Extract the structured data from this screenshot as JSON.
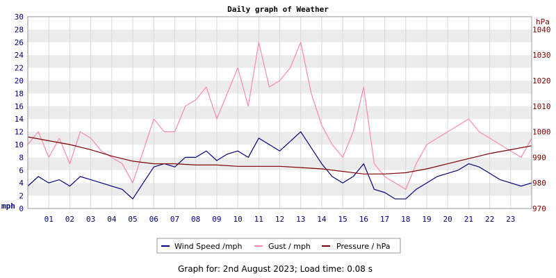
{
  "chart_data": {
    "type": "line",
    "title": "Daily graph of Weather",
    "left_axis": {
      "label": "mph",
      "ylim": [
        0,
        30
      ],
      "ticks": [
        0,
        2,
        4,
        6,
        8,
        10,
        12,
        14,
        16,
        18,
        20,
        22,
        24,
        26,
        28,
        30
      ],
      "color": "#000080"
    },
    "right_axis": {
      "label": "hPa",
      "ylim": [
        970,
        1045
      ],
      "ticks": [
        970,
        980,
        990,
        1000,
        1010,
        1020,
        1030,
        1040
      ],
      "color": "#800000"
    },
    "x_ticks": [
      "01",
      "02",
      "03",
      "04",
      "05",
      "06",
      "07",
      "08",
      "09",
      "10",
      "11",
      "12",
      "13",
      "14",
      "15",
      "16",
      "17",
      "18",
      "19",
      "20",
      "21",
      "22",
      "23"
    ],
    "x_range": [
      0,
      24
    ],
    "grid": "horizontal bands",
    "legend_position": "bottom-center",
    "legend": [
      "Wind Speed /mph",
      "Gust / mph",
      "Pressure / hPa"
    ],
    "series": [
      {
        "name": "Wind Speed /mph",
        "axis": "left",
        "color": "#000080",
        "x": [
          0,
          0.5,
          1,
          1.5,
          2,
          2.5,
          3,
          3.5,
          4,
          4.5,
          5,
          5.5,
          6,
          6.5,
          7,
          7.5,
          8,
          8.5,
          9,
          9.5,
          10,
          10.5,
          11,
          11.5,
          12,
          12.5,
          13,
          13.5,
          14,
          14.5,
          15,
          15.5,
          16,
          16.5,
          17,
          17.5,
          18,
          18.5,
          19,
          19.5,
          20,
          20.5,
          21,
          21.5,
          22,
          22.5,
          23,
          23.5,
          24
        ],
        "values": [
          3.5,
          5,
          4,
          4.5,
          3.5,
          5,
          4.5,
          4,
          3.5,
          3,
          1.5,
          4,
          6.5,
          7,
          6.5,
          8,
          8,
          9,
          7.5,
          8.5,
          9,
          8,
          11,
          10,
          9,
          10.5,
          12,
          9.5,
          7,
          5,
          4,
          5,
          7,
          3,
          2.5,
          1.5,
          1.5,
          3,
          4,
          5,
          5.5,
          6,
          7,
          6.5,
          5.5,
          4.5,
          4,
          3.5,
          4
        ]
      },
      {
        "name": "Gust / mph",
        "axis": "left",
        "color": "#ff88aa",
        "x": [
          0,
          0.5,
          1,
          1.5,
          2,
          2.5,
          3,
          3.5,
          4,
          4.5,
          5,
          5.5,
          6,
          6.5,
          7,
          7.5,
          8,
          8.5,
          9,
          9.5,
          10,
          10.5,
          11,
          11.5,
          12,
          12.5,
          13,
          13.5,
          14,
          14.5,
          15,
          15.5,
          16,
          16.5,
          17,
          17.5,
          18,
          18.5,
          19,
          19.5,
          20,
          20.5,
          21,
          21.5,
          22,
          22.5,
          23,
          23.5,
          24
        ],
        "values": [
          10,
          12,
          8,
          11,
          7,
          12,
          11,
          9,
          8,
          7,
          4,
          9,
          14,
          12,
          12,
          16,
          17,
          19,
          14,
          18,
          22,
          16,
          26,
          19,
          20,
          22,
          26,
          18,
          13,
          10,
          8,
          12,
          19,
          7,
          5,
          4,
          3,
          7,
          10,
          11,
          12,
          13,
          14,
          12,
          11,
          10,
          9,
          8,
          11
        ]
      },
      {
        "name": "Pressure / hPa",
        "axis": "right",
        "color": "#800000",
        "x": [
          0,
          1,
          2,
          3,
          4,
          5,
          6,
          7,
          8,
          9,
          10,
          11,
          12,
          13,
          14,
          15,
          16,
          17,
          18,
          19,
          20,
          21,
          22,
          23,
          24
        ],
        "values": [
          998,
          996.5,
          995,
          993,
          990.5,
          988.5,
          987.5,
          987.5,
          987,
          987,
          986.5,
          986.5,
          986.5,
          986,
          985.5,
          984.5,
          983.5,
          983.5,
          984,
          985.5,
          987.5,
          989.5,
          991.5,
          993,
          994.5
        ]
      }
    ]
  },
  "footer": "Graph for: 2nd August 2023; Load time: 0.08 s"
}
